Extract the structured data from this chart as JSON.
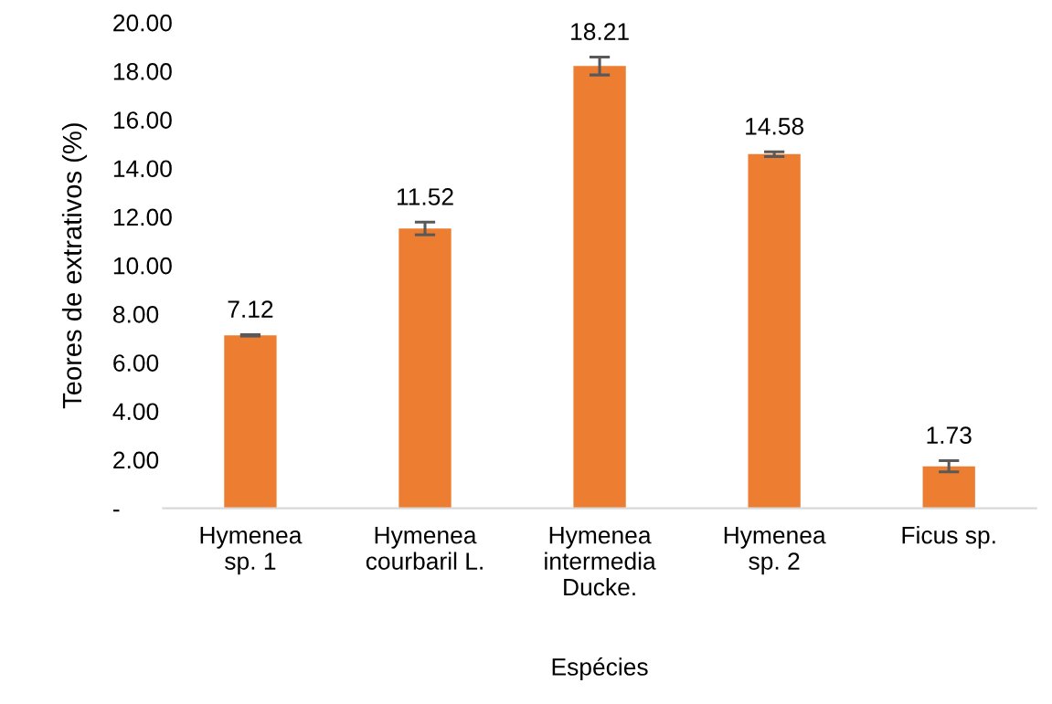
{
  "chart_data": {
    "type": "bar",
    "xlabel": "Espécies",
    "ylabel": "Teores de extrativos (%)",
    "categories": [
      "Hymenea\nsp. 1",
      "Hymenea\ncourbaril L.",
      "Hymenea\nintermedia\nDucke.",
      "Hymenea\nsp. 2",
      "Ficus sp."
    ],
    "values": [
      7.12,
      11.52,
      18.21,
      14.58,
      1.73
    ],
    "errors": [
      0.03,
      0.26,
      0.37,
      0.1,
      0.23
    ],
    "color": "#ed7d31",
    "data_labels": true,
    "ylim": [
      0,
      20
    ],
    "yticks": [
      {
        "value": 0,
        "label": "-"
      },
      {
        "value": 2,
        "label": "2.00"
      },
      {
        "value": 4,
        "label": "4.00"
      },
      {
        "value": 6,
        "label": "6.00"
      },
      {
        "value": 8,
        "label": "8.00"
      },
      {
        "value": 10,
        "label": "10.00"
      },
      {
        "value": 12,
        "label": "12.00"
      },
      {
        "value": 14,
        "label": "14.00"
      },
      {
        "value": 16,
        "label": "16.00"
      },
      {
        "value": 18,
        "label": "18.00"
      },
      {
        "value": 20,
        "label": "20.00"
      }
    ],
    "grid": false,
    "legend": false
  }
}
